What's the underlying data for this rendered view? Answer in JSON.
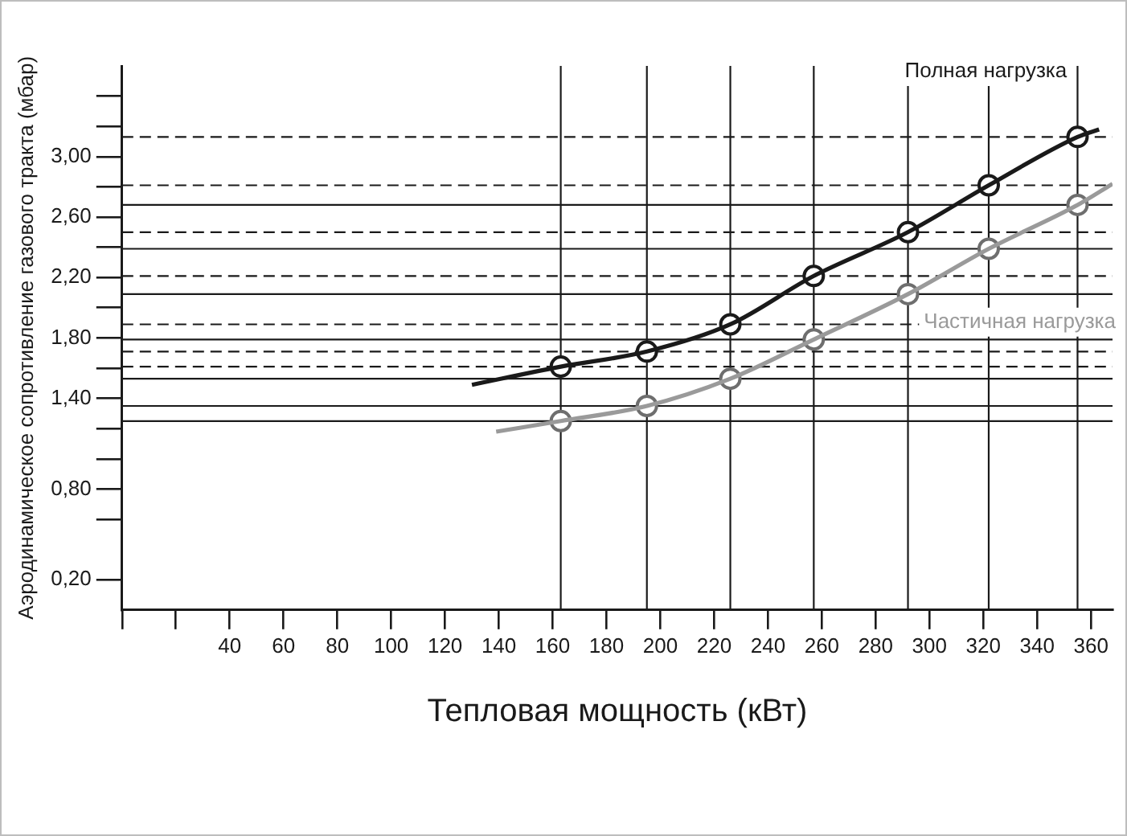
{
  "chart_data": {
    "type": "line",
    "xlabel": "Тепловая мощность (кВт)",
    "ylabel": "Аэродинамическое сопротивление газового тракта (мбар)",
    "xlim": [
      0,
      368
    ],
    "xticks": [
      {
        "value": 0,
        "label": null
      },
      {
        "value": 20,
        "label": null
      },
      40,
      60,
      80,
      100,
      120,
      140,
      160,
      180,
      200,
      220,
      240,
      260,
      280,
      300,
      320,
      340,
      360
    ],
    "ylim": [
      0,
      3.6
    ],
    "yticks": [
      {
        "value": 0.2,
        "label": "0,20"
      },
      {
        "value": 0.6,
        "label": null
      },
      {
        "value": 0.8,
        "label": "0,80"
      },
      {
        "value": 1.0,
        "label": null
      },
      {
        "value": 1.2,
        "label": null
      },
      {
        "value": 1.4,
        "label": "1,40"
      },
      {
        "value": 1.6,
        "label": null
      },
      {
        "value": 1.8,
        "label": "1,80"
      },
      {
        "value": 2.0,
        "label": null
      },
      {
        "value": 2.2,
        "label": "2,20"
      },
      {
        "value": 2.4,
        "label": null
      },
      {
        "value": 2.6,
        "label": "2,60"
      },
      {
        "value": 2.8,
        "label": null
      },
      {
        "value": 3.0,
        "label": "3,00"
      },
      {
        "value": 3.2,
        "label": null
      },
      {
        "value": 3.4,
        "label": null
      }
    ],
    "grid": false,
    "legend": false,
    "series": [
      {
        "name": "Полная нагрузка",
        "color": "#1a1a1a",
        "x": [
          130,
          163,
          195,
          226,
          257,
          292,
          322,
          355,
          363
        ],
        "values": [
          1.49,
          1.61,
          1.71,
          1.89,
          2.21,
          2.5,
          2.81,
          3.13,
          3.18
        ]
      },
      {
        "name": "Частичная нагрузка",
        "color": "#9a9a9a",
        "x": [
          139,
          163,
          195,
          226,
          257,
          292,
          322,
          355,
          368
        ],
        "values": [
          1.18,
          1.25,
          1.35,
          1.53,
          1.79,
          2.09,
          2.39,
          2.68,
          2.82
        ]
      },
      {
        "type": "scatter",
        "color": "#1a1a1a",
        "marker": "circle",
        "x": [
          163,
          195,
          226,
          257,
          292,
          322,
          355
        ],
        "values": [
          1.61,
          1.71,
          1.89,
          2.21,
          2.5,
          2.81,
          3.13
        ]
      },
      {
        "type": "scatter",
        "color": "#6e6e6e",
        "marker": "circle",
        "x": [
          163,
          195,
          226,
          257,
          292,
          322,
          355
        ],
        "values": [
          1.25,
          1.35,
          1.53,
          1.79,
          2.09,
          2.39,
          2.68
        ]
      }
    ],
    "ref_lines": [
      {
        "axis": "y",
        "value": 3.13,
        "line_style": "dashed"
      },
      {
        "axis": "y",
        "value": 2.81,
        "line_style": "dashed"
      },
      {
        "axis": "y",
        "value": 2.5,
        "line_style": "dashed"
      },
      {
        "axis": "y",
        "value": 2.21,
        "line_style": "dashed"
      },
      {
        "axis": "y",
        "value": 1.89,
        "line_style": "dashed"
      },
      {
        "axis": "y",
        "value": 1.71,
        "line_style": "dashed"
      },
      {
        "axis": "y",
        "value": 1.61,
        "line_style": "dashed"
      },
      {
        "axis": "y",
        "value": 2.68,
        "line_style": "solid"
      },
      {
        "axis": "y",
        "value": 2.39,
        "line_style": "solid"
      },
      {
        "axis": "y",
        "value": 2.09,
        "line_style": "solid"
      },
      {
        "axis": "y",
        "value": 1.79,
        "line_style": "solid"
      },
      {
        "axis": "y",
        "value": 1.53,
        "line_style": "solid"
      },
      {
        "axis": "y",
        "value": 1.35,
        "line_style": "solid"
      },
      {
        "axis": "y",
        "value": 1.25,
        "line_style": "solid"
      },
      {
        "axis": "x",
        "value": 163,
        "line_style": "solid"
      },
      {
        "axis": "x",
        "value": 195,
        "line_style": "solid"
      },
      {
        "axis": "x",
        "value": 226,
        "line_style": "solid"
      },
      {
        "axis": "x",
        "value": 257,
        "line_style": "solid"
      },
      {
        "axis": "x",
        "value": 292,
        "line_style": "solid"
      },
      {
        "axis": "x",
        "value": 322,
        "line_style": "solid"
      },
      {
        "axis": "x",
        "value": 355,
        "line_style": "solid"
      }
    ]
  }
}
